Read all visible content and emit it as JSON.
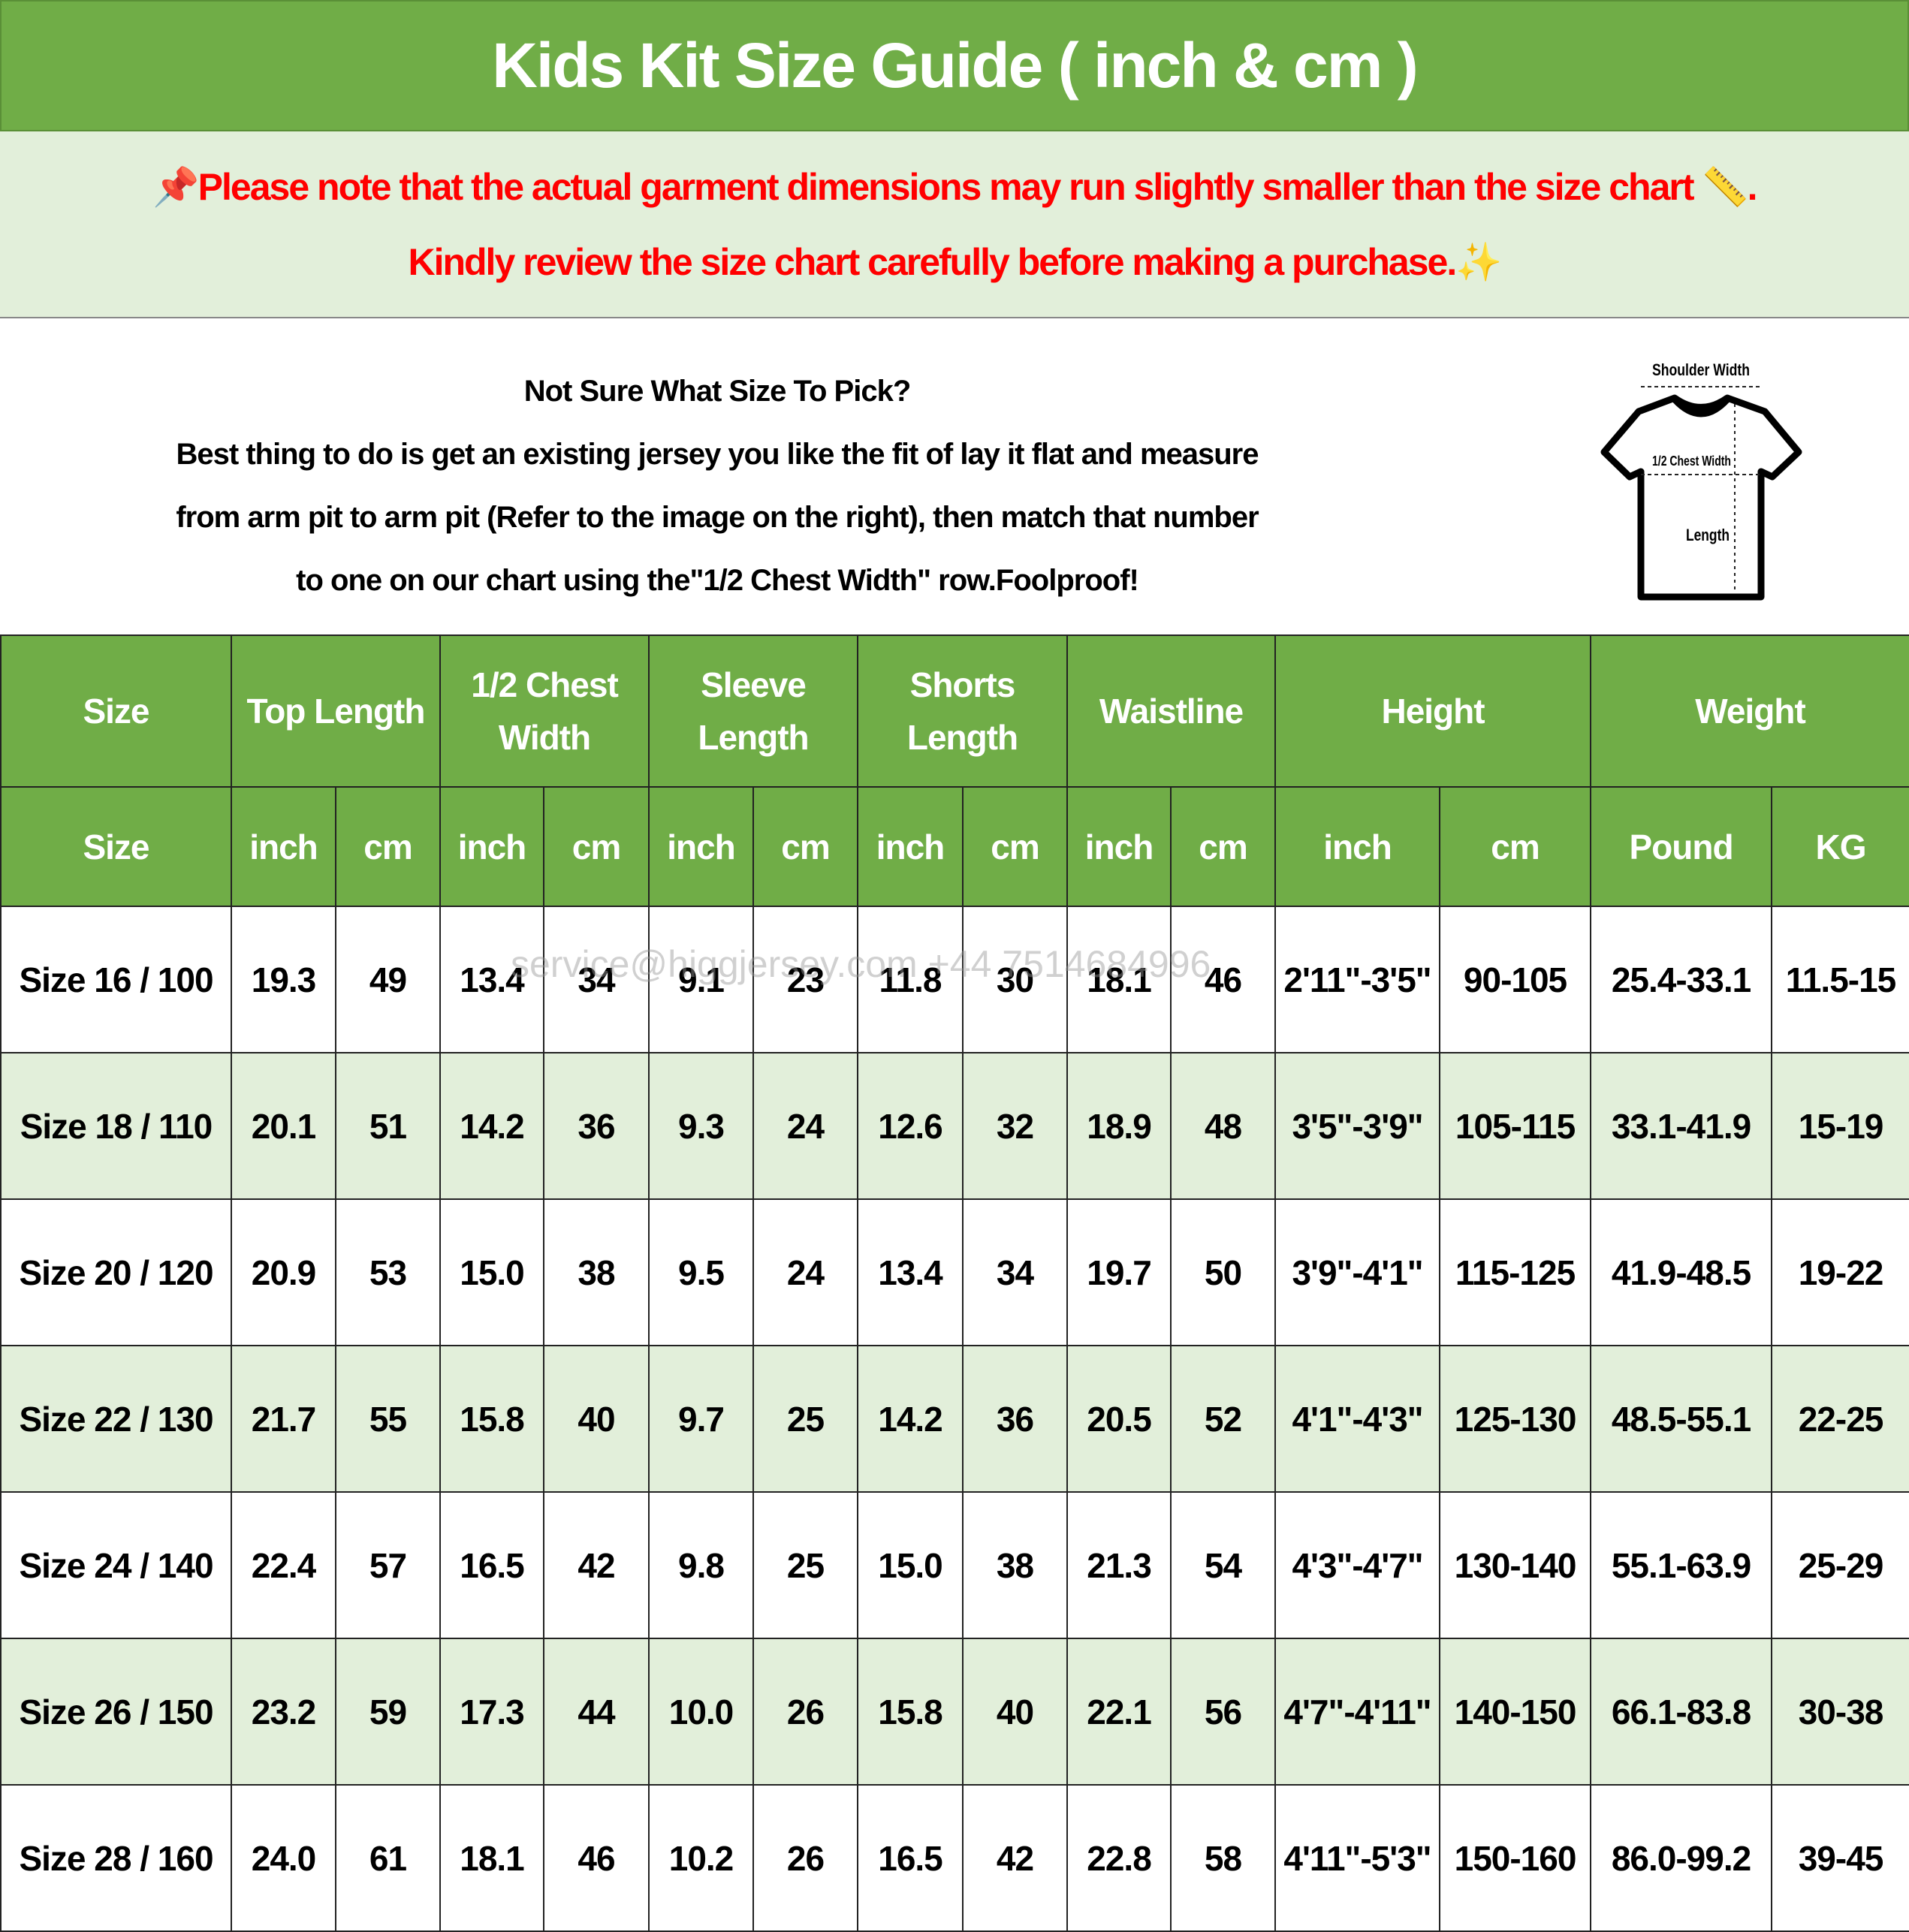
{
  "title": "Kids Kit Size Guide ( inch & cm )",
  "notice": {
    "line1": "Please note that the actual garment dimensions may run slightly smaller than the size chart",
    "line1_end": ".",
    "line2": "Kindly review the size chart carefully before making a purchase.",
    "pin_icon": "📌",
    "ruler_icon": "📏",
    "sparkle_icon": "✨",
    "color": "#ff0000"
  },
  "info": {
    "heading": "Not Sure What Size To Pick?",
    "line1": "Best thing to do is get an existing jersey you like the fit of lay it flat and measure",
    "line2": "from arm pit to arm pit (Refer to the image on the right), then match that number",
    "line3": "to one on our chart using the\"1/2 Chest Width\" row.Foolproof!"
  },
  "diagram": {
    "shoulder": "Shoulder Width",
    "chest": "1/2 Chest Width",
    "length": "Length"
  },
  "headers": [
    "Size",
    "Top Length",
    "1/2 Chest Width",
    "Sleeve Length",
    "Shorts Length",
    "Waistline",
    "Height",
    "Weight"
  ],
  "subheaders": [
    "Size",
    "inch",
    "cm",
    "inch",
    "cm",
    "inch",
    "cm",
    "inch",
    "cm",
    "inch",
    "cm",
    "inch",
    "cm",
    "Pound",
    "KG"
  ],
  "rows": [
    [
      "Size 16 / 100",
      "19.3",
      "49",
      "13.4",
      "34",
      "9.1",
      "23",
      "11.8",
      "30",
      "18.1",
      "46",
      "2'11\"-3'5\"",
      "90-105",
      "25.4-33.1",
      "11.5-15"
    ],
    [
      "Size 18 / 110",
      "20.1",
      "51",
      "14.2",
      "36",
      "9.3",
      "24",
      "12.6",
      "32",
      "18.9",
      "48",
      "3'5\"-3'9\"",
      "105-115",
      "33.1-41.9",
      "15-19"
    ],
    [
      "Size 20 / 120",
      "20.9",
      "53",
      "15.0",
      "38",
      "9.5",
      "24",
      "13.4",
      "34",
      "19.7",
      "50",
      "3'9\"-4'1\"",
      "115-125",
      "41.9-48.5",
      "19-22"
    ],
    [
      "Size 22 / 130",
      "21.7",
      "55",
      "15.8",
      "40",
      "9.7",
      "25",
      "14.2",
      "36",
      "20.5",
      "52",
      "4'1\"-4'3\"",
      "125-130",
      "48.5-55.1",
      "22-25"
    ],
    [
      "Size 24 / 140",
      "22.4",
      "57",
      "16.5",
      "42",
      "9.8",
      "25",
      "15.0",
      "38",
      "21.3",
      "54",
      "4'3\"-4'7\"",
      "130-140",
      "55.1-63.9",
      "25-29"
    ],
    [
      "Size 26 / 150",
      "23.2",
      "59",
      "17.3",
      "44",
      "10.0",
      "26",
      "15.8",
      "40",
      "22.1",
      "56",
      "4'7\"-4'11\"",
      "140-150",
      "66.1-83.8",
      "30-38"
    ],
    [
      "Size 28 / 160",
      "24.0",
      "61",
      "18.1",
      "46",
      "10.2",
      "26",
      "16.5",
      "42",
      "22.8",
      "58",
      "4'11\"-5'3\"",
      "150-160",
      "86.0-99.2",
      "39-45"
    ]
  ],
  "watermark": "service@higgjersey.com  +44 7514684996",
  "colors": {
    "header_green": "#70ad47",
    "alt_row": "#e2efda"
  }
}
